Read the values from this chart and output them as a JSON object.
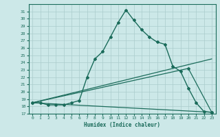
{
  "xlabel": "Humidex (Indice chaleur)",
  "xlim": [
    -0.5,
    23.5
  ],
  "ylim": [
    17,
    32
  ],
  "yticks": [
    17,
    18,
    19,
    20,
    21,
    22,
    23,
    24,
    25,
    26,
    27,
    28,
    29,
    30,
    31
  ],
  "xticks": [
    0,
    1,
    2,
    3,
    4,
    5,
    6,
    7,
    8,
    9,
    10,
    11,
    12,
    13,
    14,
    15,
    16,
    17,
    18,
    19,
    20,
    21,
    22,
    23
  ],
  "bg_color": "#cce8e8",
  "line_color": "#1a6b5a",
  "grid_color": "#aacccc",
  "main_line_x": [
    0,
    1,
    2,
    3,
    4,
    5,
    6,
    7,
    8,
    9,
    10,
    11,
    12,
    13,
    14,
    15,
    16,
    17,
    18,
    19,
    20,
    21,
    22,
    23
  ],
  "main_line_y": [
    18.5,
    18.5,
    18.2,
    18.2,
    18.2,
    18.5,
    18.8,
    22.0,
    24.5,
    25.5,
    27.5,
    29.5,
    31.2,
    29.8,
    28.5,
    27.5,
    26.8,
    26.5,
    23.5,
    22.8,
    20.5,
    18.5,
    17.3,
    17.2
  ],
  "line2_x": [
    0,
    20,
    23
  ],
  "line2_y": [
    18.5,
    23.2,
    17.2
  ],
  "line3_x": [
    0,
    23
  ],
  "line3_y": [
    18.5,
    24.5
  ],
  "line4_x": [
    0,
    23
  ],
  "line4_y": [
    18.5,
    17.2
  ]
}
